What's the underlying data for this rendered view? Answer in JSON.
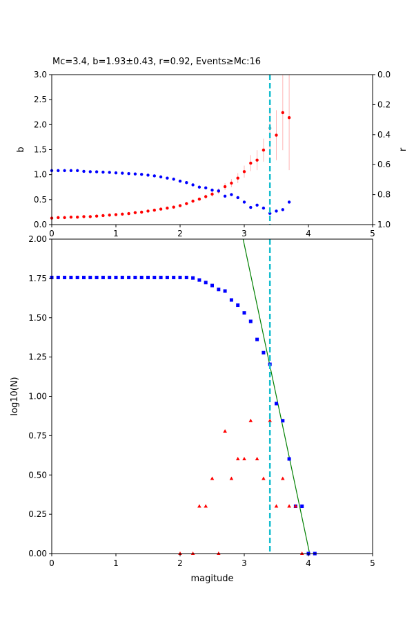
{
  "chart_data": [
    {
      "type": "scatter",
      "title": "Mc=3.4, b=1.93±0.43, r=0.92, Events≥Mc:16",
      "xlabel": "",
      "ylabel": "b",
      "ylabel_right": "r",
      "xlim": [
        0,
        5
      ],
      "ylim": [
        0,
        3.0
      ],
      "ylim_right": [
        1.0,
        0.0
      ],
      "x_ticks": [
        "0",
        "1",
        "2",
        "3",
        "4",
        "5"
      ],
      "y_ticks": [
        "0.0",
        "0.5",
        "1.0",
        "1.5",
        "2.0",
        "2.5",
        "3.0"
      ],
      "y_ticks_right": [
        "0.0",
        "0.2",
        "0.4",
        "0.6",
        "0.8",
        "1.0"
      ],
      "grid": false,
      "mc_line": 3.4,
      "series": [
        {
          "axis": "left",
          "color": "#ff0000",
          "marker": "circle",
          "x": [
            0.0,
            0.1,
            0.2,
            0.3,
            0.4,
            0.5,
            0.6,
            0.7,
            0.8,
            0.9,
            1.0,
            1.1,
            1.2,
            1.3,
            1.4,
            1.5,
            1.6,
            1.7,
            1.8,
            1.9,
            2.0,
            2.1,
            2.2,
            2.3,
            2.4,
            2.5,
            2.6,
            2.7,
            2.8,
            2.9,
            3.0,
            3.1,
            3.2,
            3.3,
            3.4,
            3.5,
            3.6,
            3.7
          ],
          "y": [
            0.13,
            0.14,
            0.14,
            0.15,
            0.15,
            0.16,
            0.16,
            0.17,
            0.18,
            0.19,
            0.2,
            0.21,
            0.22,
            0.24,
            0.25,
            0.27,
            0.29,
            0.31,
            0.33,
            0.35,
            0.38,
            0.42,
            0.47,
            0.51,
            0.56,
            0.61,
            0.67,
            0.76,
            0.83,
            0.93,
            1.06,
            1.23,
            1.29,
            1.49,
            1.93,
            1.79,
            2.24,
            2.14
          ],
          "err": [
            0.01,
            0.01,
            0.01,
            0.01,
            0.01,
            0.01,
            0.01,
            0.01,
            0.01,
            0.01,
            0.01,
            0.01,
            0.01,
            0.01,
            0.01,
            0.01,
            0.01,
            0.02,
            0.02,
            0.02,
            0.02,
            0.03,
            0.03,
            0.03,
            0.04,
            0.05,
            0.06,
            0.07,
            0.08,
            0.1,
            0.12,
            0.16,
            0.2,
            0.23,
            0.43,
            0.5,
            0.75,
            1.05
          ]
        },
        {
          "axis": "right",
          "color": "#0000ff",
          "marker": "circle",
          "x": [
            0.0,
            0.1,
            0.2,
            0.3,
            0.4,
            0.5,
            0.6,
            0.7,
            0.8,
            0.9,
            1.0,
            1.1,
            1.2,
            1.3,
            1.4,
            1.5,
            1.6,
            1.7,
            1.8,
            1.9,
            2.0,
            2.1,
            2.2,
            2.3,
            2.4,
            2.5,
            2.6,
            2.7,
            2.8,
            2.9,
            3.0,
            3.1,
            3.2,
            3.3,
            3.4,
            3.5,
            3.6,
            3.7
          ],
          "y": [
            0.64,
            0.64,
            0.64,
            0.64,
            0.64,
            0.645,
            0.647,
            0.648,
            0.65,
            0.652,
            0.655,
            0.657,
            0.66,
            0.662,
            0.665,
            0.67,
            0.675,
            0.682,
            0.69,
            0.697,
            0.71,
            0.72,
            0.735,
            0.75,
            0.755,
            0.77,
            0.775,
            0.81,
            0.8,
            0.82,
            0.85,
            0.885,
            0.87,
            0.89,
            0.925,
            0.91,
            0.9,
            0.85
          ]
        }
      ]
    },
    {
      "type": "scatter",
      "title": "",
      "xlabel": "magitude",
      "ylabel": "log10(N)",
      "xlim": [
        0,
        5
      ],
      "ylim": [
        0,
        2.0
      ],
      "x_ticks": [
        "0",
        "1",
        "2",
        "3",
        "4",
        "5"
      ],
      "y_ticks": [
        "0.00",
        "0.25",
        "0.50",
        "0.75",
        "1.00",
        "1.25",
        "1.50",
        "1.75",
        "2.00"
      ],
      "grid": false,
      "mc_line": 3.4,
      "fit_line": {
        "a": 7.756,
        "b": 1.93,
        "color": "#008000"
      },
      "series": [
        {
          "color": "#0000ff",
          "marker": "square",
          "x": [
            0.0,
            0.1,
            0.2,
            0.3,
            0.4,
            0.5,
            0.6,
            0.7,
            0.8,
            0.9,
            1.0,
            1.1,
            1.2,
            1.3,
            1.4,
            1.5,
            1.6,
            1.7,
            1.8,
            1.9,
            2.0,
            2.1,
            2.2,
            2.3,
            2.4,
            2.5,
            2.6,
            2.7,
            2.8,
            2.9,
            3.0,
            3.1,
            3.2,
            3.3,
            3.4,
            3.5,
            3.6,
            3.7,
            3.8,
            3.9,
            4.0,
            4.1
          ],
          "y": [
            1.756,
            1.756,
            1.756,
            1.756,
            1.756,
            1.756,
            1.756,
            1.756,
            1.756,
            1.756,
            1.756,
            1.756,
            1.756,
            1.756,
            1.756,
            1.756,
            1.756,
            1.756,
            1.756,
            1.756,
            1.756,
            1.756,
            1.753,
            1.74,
            1.724,
            1.705,
            1.68,
            1.67,
            1.613,
            1.58,
            1.531,
            1.477,
            1.362,
            1.278,
            1.204,
            0.954,
            0.845,
            0.602,
            0.301,
            0.301,
            0.0,
            0.0
          ]
        },
        {
          "color": "#ff0000",
          "marker": "triangle",
          "x": [
            2.0,
            2.2,
            2.3,
            2.4,
            2.5,
            2.6,
            2.7,
            2.8,
            2.9,
            3.0,
            3.1,
            3.2,
            3.3,
            3.4,
            3.5,
            3.6,
            3.7,
            3.8,
            3.9
          ],
          "y": [
            0.0,
            0.0,
            0.301,
            0.301,
            0.477,
            0.0,
            0.778,
            0.477,
            0.602,
            0.602,
            0.845,
            0.602,
            0.477,
            0.845,
            0.301,
            0.477,
            0.301,
            0.301,
            0.0
          ]
        }
      ]
    }
  ]
}
